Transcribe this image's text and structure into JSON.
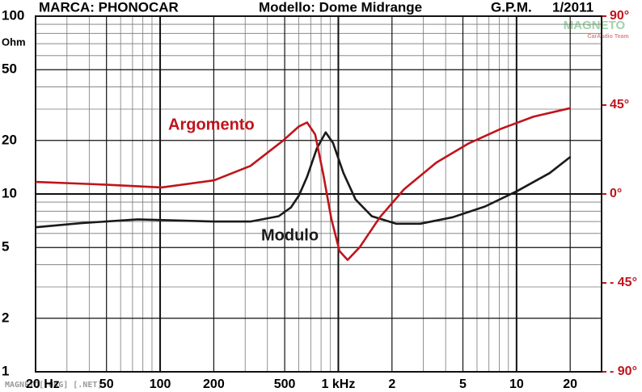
{
  "chart_data": {
    "type": "line",
    "header": [
      "MARCA: PHONOCAR",
      "Modello: Dome Midrange",
      "G.P.M.",
      "1/2011"
    ],
    "watermark": [
      "MAGNETO",
      "CarAudio Team"
    ],
    "footer": "MAGNETO[.ORG] [.NET]",
    "y_label": "Ohm",
    "log_x": true,
    "log_y": true,
    "grid": true,
    "xlim": [
      20,
      30000
    ],
    "xticks": [
      {
        "value": 20,
        "label": "20 Hz"
      },
      50,
      100,
      200,
      500,
      {
        "value": 1000,
        "label": "1 kHz"
      },
      {
        "value": 2000,
        "label": "2"
      },
      {
        "value": 5000,
        "label": "5"
      },
      {
        "value": 10000,
        "label": "10"
      },
      {
        "value": 20000,
        "label": "20"
      }
    ],
    "x_minor_ticks": [
      30,
      40,
      60,
      70,
      80,
      90,
      300,
      400,
      600,
      700,
      800,
      900,
      3000,
      4000,
      6000,
      7000,
      8000,
      9000,
      30000
    ],
    "ylim": [
      1,
      100
    ],
    "yticks": [
      1,
      2,
      5,
      10,
      20,
      50,
      100
    ],
    "y_minor_ticks": [
      3,
      4,
      6,
      7,
      8,
      9,
      30,
      40,
      60,
      70,
      80,
      90
    ],
    "y2lim": [
      -90,
      90
    ],
    "y2ticks": [
      {
        "value": 90,
        "label": "90°"
      },
      {
        "value": 45,
        "label": "45°"
      },
      {
        "value": 0,
        "label": "0°"
      },
      {
        "value": -45,
        "label": "- 45°"
      },
      {
        "value": -90,
        "label": "- 90°"
      }
    ],
    "series": [
      {
        "name": "Modulo",
        "color": "#1a1a1a",
        "axis": "y",
        "x": [
          20,
          36,
          75,
          201,
          321,
          463,
          542,
          601,
          668,
          757,
          849,
          933,
          1069,
          1250,
          1541,
          2108,
          2883,
          4377,
          6650,
          10090,
          15320,
          20100
        ],
        "values": [
          6.5,
          6.85,
          7.2,
          7.0,
          7.0,
          7.5,
          8.4,
          9.8,
          12.5,
          18,
          22.2,
          19.4,
          13.1,
          9.3,
          7.5,
          6.8,
          6.8,
          7.4,
          8.5,
          10.4,
          13.1,
          16.2
        ]
      },
      {
        "name": "Argomento",
        "color": "#c0141c",
        "axis": "y2",
        "x": [
          20,
          44,
          102,
          201,
          321,
          488,
          601,
          668,
          741,
          824,
          914,
          1015,
          1127,
          1318,
          1710,
          2340,
          3549,
          5393,
          8189,
          12430,
          20100
        ],
        "values": [
          6.1,
          4.9,
          3.3,
          6.9,
          14.2,
          26.9,
          34.2,
          36.2,
          30.1,
          9.8,
          -12.6,
          -28.9,
          -33.4,
          -26.9,
          -11.8,
          2.4,
          15.9,
          25.6,
          33,
          39.1,
          43.5
        ]
      }
    ]
  }
}
